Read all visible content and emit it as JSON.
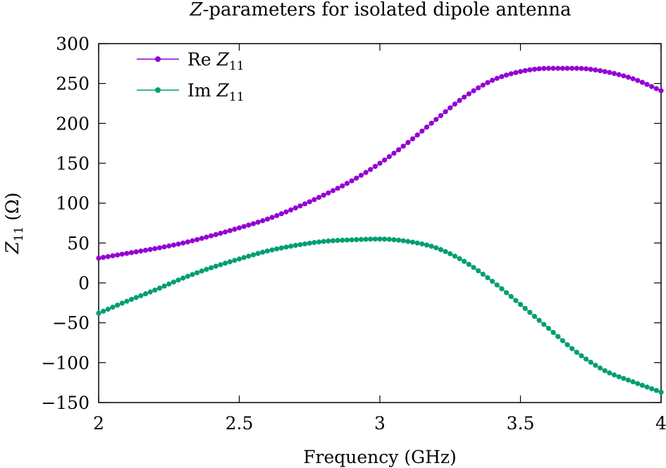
{
  "chart_data": {
    "type": "line",
    "title_prefix": "Z",
    "title_rest": "-parameters for isolated dipole antenna",
    "xlabel": "Frequency (GHz)",
    "ylabel_sym": "Z",
    "ylabel_sub": "11",
    "ylabel_unit": "(Ω)",
    "xlim": [
      2,
      4
    ],
    "ylim": [
      -150,
      300
    ],
    "xticks": [
      2,
      2.5,
      3,
      3.5,
      4
    ],
    "xtick_labels": [
      "2",
      "2.5",
      "3",
      "3.5",
      "4"
    ],
    "yticks": [
      -150,
      -100,
      -50,
      0,
      50,
      100,
      150,
      200,
      250,
      300
    ],
    "ytick_labels": [
      "−150",
      "−100",
      "−50",
      "0",
      "50",
      "100",
      "150",
      "200",
      "250",
      "300"
    ],
    "grid": false,
    "legend_position": "top-left",
    "x": [
      2.0,
      2.1,
      2.2,
      2.3,
      2.4,
      2.5,
      2.6,
      2.7,
      2.8,
      2.9,
      3.0,
      3.1,
      3.2,
      3.3,
      3.4,
      3.5,
      3.6,
      3.7,
      3.8,
      3.9,
      4.0
    ],
    "series": [
      {
        "name_prefix": "Re",
        "name_sym": "Z",
        "name_sub": "11",
        "color": "#9400d3",
        "values": [
          31,
          37,
          43,
          50,
          59,
          69,
          80,
          94,
          110,
          128,
          150,
          176,
          205,
          233,
          254,
          265,
          269,
          269,
          265,
          256,
          241
        ]
      },
      {
        "name_prefix": "Im",
        "name_sym": "Z",
        "name_sub": "11",
        "color": "#009e73",
        "values": [
          -38,
          -23,
          -9,
          6,
          19,
          30,
          40,
          47,
          52,
          54,
          55,
          52,
          44,
          27,
          2,
          -27,
          -57,
          -87,
          -110,
          -124,
          -137
        ]
      }
    ]
  }
}
